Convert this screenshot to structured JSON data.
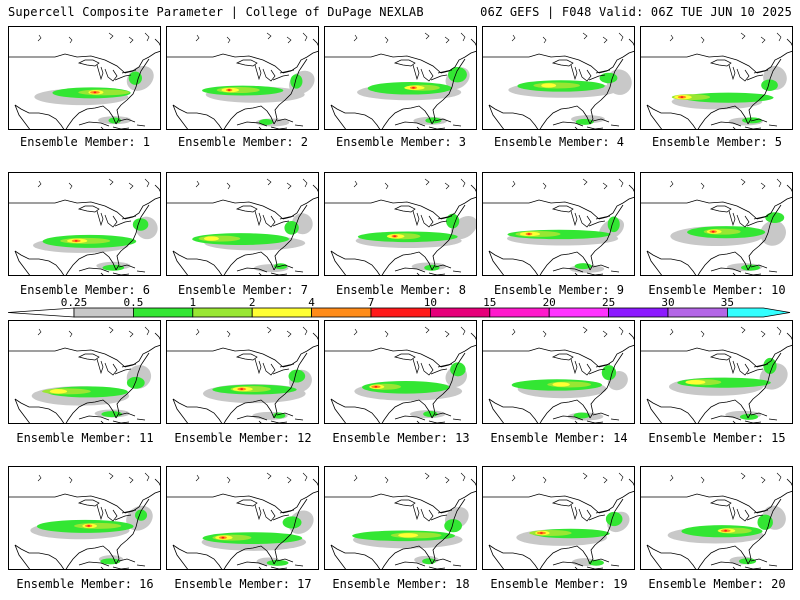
{
  "header": {
    "left": "Supercell Composite Parameter | College of DuPage NEXLAB",
    "right": "06Z GEFS | F048 Valid: 06Z TUE JUN 10 2025"
  },
  "caption_prefix": "Ensemble Member: ",
  "members": [
    {
      "label": "Ensemble Member: 1"
    },
    {
      "label": "Ensemble Member: 2"
    },
    {
      "label": "Ensemble Member: 3"
    },
    {
      "label": "Ensemble Member: 4"
    },
    {
      "label": "Ensemble Member: 5"
    },
    {
      "label": "Ensemble Member: 6"
    },
    {
      "label": "Ensemble Member: 7"
    },
    {
      "label": "Ensemble Member: 8"
    },
    {
      "label": "Ensemble Member: 9"
    },
    {
      "label": "Ensemble Member: 10"
    },
    {
      "label": "Ensemble Member: 11"
    },
    {
      "label": "Ensemble Member: 12"
    },
    {
      "label": "Ensemble Member: 13"
    },
    {
      "label": "Ensemble Member: 14"
    },
    {
      "label": "Ensemble Member: 15"
    },
    {
      "label": "Ensemble Member: 16"
    },
    {
      "label": "Ensemble Member: 17"
    },
    {
      "label": "Ensemble Member: 18"
    },
    {
      "label": "Ensemble Member: 19"
    },
    {
      "label": "Ensemble Member: 20"
    }
  ],
  "colorbar": {
    "labels": [
      "0.25",
      "0.5",
      "1",
      "2",
      "4",
      "7",
      "10",
      "15",
      "20",
      "25",
      "30",
      "35"
    ],
    "colors": [
      "#c8c8c8",
      "#33e633",
      "#99e633",
      "#ffff33",
      "#ff8c1a",
      "#ff1a1a",
      "#e6007a",
      "#ff1acc",
      "#ff33ff",
      "#8c1aff",
      "#b366e6",
      "#33ffff"
    ]
  }
}
